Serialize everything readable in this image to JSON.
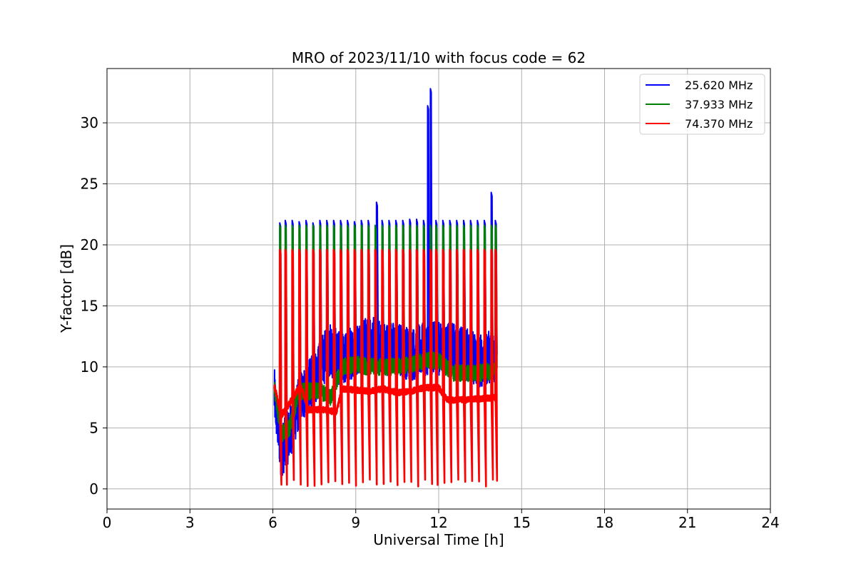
{
  "chart_data": {
    "type": "line",
    "title": "MRO of 2023/11/10 with focus code = 62",
    "xlabel": "Universal Time [h]",
    "ylabel": "Y-factor [dB]",
    "xlim": [
      0,
      24
    ],
    "ylim": [
      -1.65,
      34.45
    ],
    "xticks": [
      0,
      3,
      6,
      9,
      12,
      15,
      18,
      21,
      24
    ],
    "yticks": [
      0,
      5,
      10,
      15,
      20,
      25,
      30
    ],
    "grid": true,
    "legend_position": "top-right",
    "series": [
      {
        "name": "25.620 MHz",
        "color": "#0000ff",
        "baseline": [
          [
            6.05,
            7.8
          ],
          [
            6.3,
            3.0
          ],
          [
            6.6,
            4.5
          ],
          [
            7.0,
            7.5
          ],
          [
            7.5,
            9.0
          ],
          [
            8.0,
            11.5
          ],
          [
            8.5,
            10.5
          ],
          [
            9.0,
            11.5
          ],
          [
            9.5,
            12.0
          ],
          [
            10.0,
            11.5
          ],
          [
            10.5,
            11.5
          ],
          [
            11.0,
            11.0
          ],
          [
            11.5,
            11.5
          ],
          [
            12.0,
            11.5
          ],
          [
            12.5,
            11.5
          ],
          [
            13.0,
            11.0
          ],
          [
            13.5,
            10.5
          ],
          [
            14.1,
            11.0
          ]
        ],
        "noise": 2.2,
        "spikes": [
          [
            6.25,
            21.8
          ],
          [
            6.45,
            22.0
          ],
          [
            6.7,
            22.0
          ],
          [
            6.95,
            21.9
          ],
          [
            7.2,
            22.0
          ],
          [
            7.45,
            21.8
          ],
          [
            7.7,
            22.0
          ],
          [
            7.95,
            22.0
          ],
          [
            8.2,
            22.0
          ],
          [
            8.45,
            22.0
          ],
          [
            8.7,
            22.0
          ],
          [
            8.95,
            21.9
          ],
          [
            9.2,
            22.0
          ],
          [
            9.45,
            22.0
          ],
          [
            9.75,
            23.5
          ],
          [
            9.95,
            22.0
          ],
          [
            10.2,
            22.0
          ],
          [
            10.45,
            22.0
          ],
          [
            10.7,
            22.0
          ],
          [
            10.95,
            22.1
          ],
          [
            11.2,
            22.1
          ],
          [
            11.45,
            22.0
          ],
          [
            11.6,
            31.4
          ],
          [
            11.7,
            32.8
          ],
          [
            11.9,
            22.0
          ],
          [
            12.15,
            22.0
          ],
          [
            12.4,
            22.0
          ],
          [
            12.65,
            22.0
          ],
          [
            12.9,
            22.0
          ],
          [
            13.15,
            22.0
          ],
          [
            13.4,
            22.0
          ],
          [
            13.65,
            22.0
          ],
          [
            13.9,
            24.3
          ],
          [
            14.05,
            22.0
          ]
        ]
      },
      {
        "name": "37.933 MHz",
        "color": "#008000",
        "baseline": [
          [
            6.05,
            8.5
          ],
          [
            6.3,
            4.5
          ],
          [
            6.6,
            5.0
          ],
          [
            6.95,
            8.0
          ],
          [
            7.3,
            8.0
          ],
          [
            7.7,
            8.0
          ],
          [
            8.1,
            7.5
          ],
          [
            8.5,
            10.0
          ],
          [
            9.0,
            10.2
          ],
          [
            9.5,
            10.0
          ],
          [
            10.0,
            10.0
          ],
          [
            10.5,
            10.0
          ],
          [
            11.0,
            10.2
          ],
          [
            11.5,
            10.5
          ],
          [
            12.0,
            10.5
          ],
          [
            12.5,
            9.5
          ],
          [
            13.0,
            9.5
          ],
          [
            13.5,
            9.5
          ],
          [
            14.1,
            9.7
          ]
        ],
        "noise": 0.7,
        "spikes": [
          [
            6.25,
            21.6
          ],
          [
            6.45,
            21.6
          ],
          [
            6.7,
            21.6
          ],
          [
            6.95,
            21.6
          ],
          [
            7.2,
            21.6
          ],
          [
            7.45,
            21.6
          ],
          [
            7.7,
            21.6
          ],
          [
            7.95,
            21.6
          ],
          [
            8.2,
            21.6
          ],
          [
            8.45,
            21.6
          ],
          [
            8.7,
            21.6
          ],
          [
            8.95,
            21.6
          ],
          [
            9.2,
            21.6
          ],
          [
            9.45,
            21.6
          ],
          [
            9.7,
            21.6
          ],
          [
            9.95,
            21.6
          ],
          [
            10.2,
            21.6
          ],
          [
            10.45,
            21.6
          ],
          [
            10.7,
            21.6
          ],
          [
            10.95,
            21.6
          ],
          [
            11.2,
            21.6
          ],
          [
            11.45,
            21.6
          ],
          [
            11.7,
            21.6
          ],
          [
            11.9,
            21.6
          ],
          [
            12.15,
            21.6
          ],
          [
            12.4,
            21.6
          ],
          [
            12.65,
            21.6
          ],
          [
            12.9,
            21.6
          ],
          [
            13.15,
            21.6
          ],
          [
            13.4,
            21.6
          ],
          [
            13.65,
            21.6
          ],
          [
            13.9,
            21.6
          ],
          [
            14.05,
            21.6
          ]
        ]
      },
      {
        "name": "74.370 MHz",
        "color": "#ff0000",
        "baseline": [
          [
            6.05,
            8.5
          ],
          [
            6.3,
            6.0
          ],
          [
            6.6,
            7.0
          ],
          [
            7.0,
            8.5
          ],
          [
            7.3,
            6.5
          ],
          [
            7.8,
            6.5
          ],
          [
            8.3,
            6.3
          ],
          [
            8.5,
            8.2
          ],
          [
            9.0,
            8.1
          ],
          [
            9.5,
            8.0
          ],
          [
            10.0,
            8.2
          ],
          [
            10.5,
            7.9
          ],
          [
            11.0,
            8.0
          ],
          [
            11.5,
            8.3
          ],
          [
            12.0,
            8.3
          ],
          [
            12.3,
            7.3
          ],
          [
            12.7,
            7.3
          ],
          [
            13.0,
            7.3
          ],
          [
            13.5,
            7.4
          ],
          [
            14.1,
            7.5
          ]
        ],
        "noise": 0.25,
        "spikes": [
          [
            6.25,
            19.6
          ],
          [
            6.45,
            19.6
          ],
          [
            6.7,
            19.6
          ],
          [
            6.95,
            19.6
          ],
          [
            7.2,
            19.6
          ],
          [
            7.45,
            19.6
          ],
          [
            7.7,
            19.6
          ],
          [
            7.95,
            19.6
          ],
          [
            8.2,
            19.6
          ],
          [
            8.45,
            19.6
          ],
          [
            8.7,
            19.6
          ],
          [
            8.95,
            19.6
          ],
          [
            9.2,
            19.6
          ],
          [
            9.45,
            19.6
          ],
          [
            9.7,
            19.6
          ],
          [
            9.95,
            19.6
          ],
          [
            10.2,
            19.6
          ],
          [
            10.45,
            19.6
          ],
          [
            10.7,
            19.6
          ],
          [
            10.95,
            19.6
          ],
          [
            11.2,
            19.6
          ],
          [
            11.45,
            19.6
          ],
          [
            11.7,
            19.6
          ],
          [
            11.9,
            19.6
          ],
          [
            12.15,
            19.6
          ],
          [
            12.4,
            19.6
          ],
          [
            12.65,
            19.6
          ],
          [
            12.9,
            19.6
          ],
          [
            13.15,
            19.6
          ],
          [
            13.4,
            19.6
          ],
          [
            13.65,
            19.6
          ],
          [
            13.9,
            19.6
          ],
          [
            14.05,
            19.6
          ]
        ]
      }
    ]
  }
}
